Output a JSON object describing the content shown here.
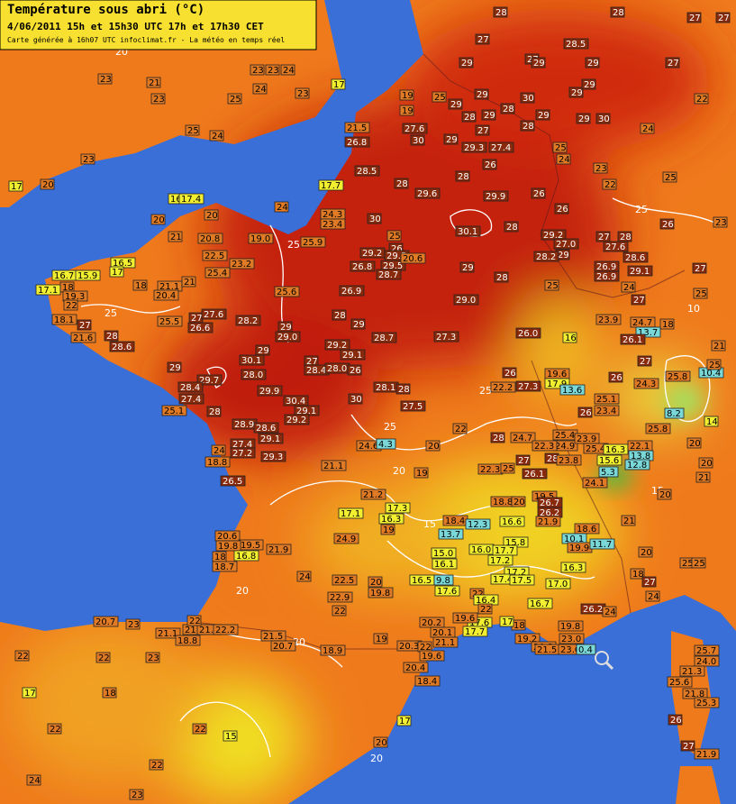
{
  "header": {
    "title": "Température sous abri (°C)",
    "line2": "4/06/2011  15h et 15h30 UTC  17h et 17h30 CET",
    "line3": "Carte générée à 16h07 UTC   infoclimat.fr - La météo en temps réel"
  },
  "stations": [
    "28",
    "27",
    "27",
    "28",
    "27",
    "28.5",
    "27",
    "27",
    "29",
    "29",
    "29",
    "23",
    "24",
    "23",
    "17",
    "21",
    "23",
    "24",
    "23",
    "25",
    "19",
    "29",
    "30",
    "29",
    "29",
    "19",
    "25",
    "23",
    "28",
    "29",
    "29",
    "30",
    "22",
    "24",
    "25",
    "24",
    "21.5",
    "27.6",
    "30",
    "26.8",
    "29",
    "28",
    "29",
    "29",
    "28",
    "27",
    "29.3",
    "27.4",
    "25",
    "24",
    "26",
    "28",
    "28.5",
    "23",
    "17",
    "20",
    "17.7",
    "28",
    "29.6",
    "29.9",
    "23",
    "22",
    "25",
    "26",
    "26",
    "16",
    "17.4",
    "20",
    "20",
    "24",
    "24.3",
    "23.4",
    "30",
    "25",
    "30.1",
    "28",
    "26",
    "23",
    "21",
    "20.8",
    "19.0",
    "25.9",
    "26",
    "25",
    "29.2",
    "27.0",
    "27",
    "28",
    "27.6",
    "29.2",
    "29.5",
    "29",
    "28.2",
    "28.6",
    "22.5",
    "23.2",
    "16.5",
    "17",
    "16.7",
    "15.9",
    "26.8",
    "29.5",
    "20.6",
    "29",
    "26.9",
    "29.1",
    "25.4",
    "28.7",
    "26.9",
    "27",
    "18",
    "21.1",
    "20.4",
    "21",
    "17.1",
    "18",
    "19.3",
    "25.6",
    "26.9",
    "28",
    "25",
    "24",
    "29.0",
    "27",
    "25",
    "22",
    "25.5",
    "27",
    "27.6",
    "26.6",
    "28.2",
    "28",
    "29",
    "29",
    "29.0",
    "23.9",
    "24.7",
    "18",
    "13.7",
    "18.1",
    "27",
    "21.6",
    "28",
    "28.6",
    "26.0",
    "16",
    "27.3",
    "28.7",
    "26.1",
    "21",
    "29.2",
    "29.1",
    "29",
    "30.1",
    "27",
    "28.4",
    "28.0",
    "26",
    "27",
    "29",
    "28.0",
    "29.7",
    "28.4",
    "26",
    "19.6",
    "17.9",
    "26",
    "25.8",
    "10.4",
    "25",
    "28.1",
    "28",
    "22.2",
    "27.3",
    "24.3",
    "13.6",
    "27.4",
    "29.9",
    "30.4",
    "29.1",
    "30",
    "25.1",
    "28",
    "27.5",
    "25.1",
    "23.4",
    "8.2",
    "26",
    "29.2",
    "14",
    "28.9",
    "28.6",
    "22",
    "25.8",
    "29.1",
    "27.4",
    "24",
    "28",
    "24.7",
    "25.4",
    "24.9",
    "22.3",
    "23.9",
    "25.4",
    "16.3",
    "22.1",
    "24.6",
    "4.3",
    "20",
    "27.2",
    "29.3",
    "20",
    "18.8",
    "28",
    "23.8",
    "15.6",
    "13.8",
    "12.8",
    "27",
    "21.1",
    "22.3",
    "25",
    "26.5",
    "19",
    "26.1",
    "5.3",
    "24.1",
    "20",
    "21",
    "21.2",
    "19.5",
    "26.7",
    "20",
    "17.3",
    "18.8",
    "20",
    "26.2",
    "16.3",
    "17.1",
    "18.4",
    "12.3",
    "16.6",
    "21.9",
    "19",
    "13.7",
    "15.8",
    "18.6",
    "21",
    "20.6",
    "24.9",
    "10.1",
    "19.5",
    "19.8",
    "21.9",
    "15.0",
    "16.0",
    "17.7",
    "19.9",
    "11.7",
    "20",
    "18",
    "16.8",
    "17.2",
    "16.1",
    "18.7",
    "16.3",
    "25",
    "25",
    "17.2",
    "24",
    "22.5",
    "20",
    "17.4",
    "17.5",
    "16.5",
    "9.8",
    "17.0",
    "18",
    "27",
    "17.6",
    "22",
    "16.4",
    "19.8",
    "22.9",
    "22",
    "16.7",
    "24",
    "22",
    "26.2",
    "24",
    "20.7",
    "23",
    "21.1",
    "21.2",
    "21.9",
    "22.2",
    "22",
    "17.6",
    "19.6",
    "20.2",
    "20.1",
    "21.1",
    "17.7",
    "18",
    "18.8",
    "21.5",
    "20.7",
    "19",
    "20.3",
    "17",
    "19.8",
    "18.9",
    "22",
    "19.2",
    "20.3",
    "23.0",
    "21.5",
    "23.0",
    "0.4",
    "25.7",
    "24.0",
    "22",
    "22",
    "23",
    "19.6",
    "20.4",
    "21.3",
    "18.4",
    "25.6",
    "17",
    "18",
    "21.8",
    "25.3",
    "26",
    "17",
    "22",
    "22",
    "15",
    "20",
    "27",
    "21.9",
    "22",
    "24",
    "23"
  ],
  "contour_labels": [
    "25",
    "20",
    "25",
    "25",
    "25",
    "20",
    "15",
    "20",
    "20",
    "20",
    "15",
    "25",
    "10"
  ]
}
